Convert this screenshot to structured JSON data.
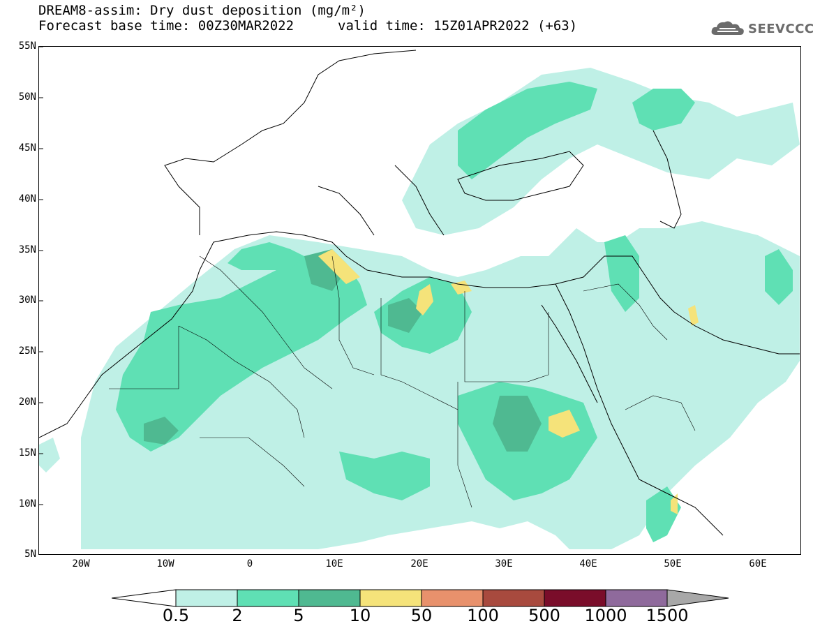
{
  "title": {
    "line1": "DREAM8-assim: Dry dust deposition (mg/m²)",
    "line2_base": "Forecast base time: 00Z30MAR2022",
    "line2_valid": "valid time: 15Z01APR2022 (+63)"
  },
  "logo": {
    "text": "SEEVCCC",
    "icon": "cloud-icon"
  },
  "map": {
    "region": "North Africa, Europe and Middle East",
    "lat_labels": [
      "55N",
      "50N",
      "45N",
      "40N",
      "35N",
      "30N",
      "25N",
      "20N",
      "15N",
      "10N",
      "5N"
    ],
    "lon_labels": [
      "20W",
      "10W",
      "0",
      "10E",
      "20E",
      "30E",
      "40E",
      "50E",
      "60E"
    ],
    "lon_range": [
      -25,
      65
    ],
    "lat_range": [
      5,
      55
    ]
  },
  "legend": {
    "labels": [
      "0.5",
      "2",
      "5",
      "10",
      "50",
      "100",
      "500",
      "1000",
      "1500"
    ],
    "colors": [
      "#ffffff",
      "#bff0e6",
      "#5fe0b4",
      "#4fb991",
      "#f5e37a",
      "#e8916c",
      "#a84a3e",
      "#7a0d2a",
      "#8f6a9c",
      "#a8a8a8"
    ]
  }
}
